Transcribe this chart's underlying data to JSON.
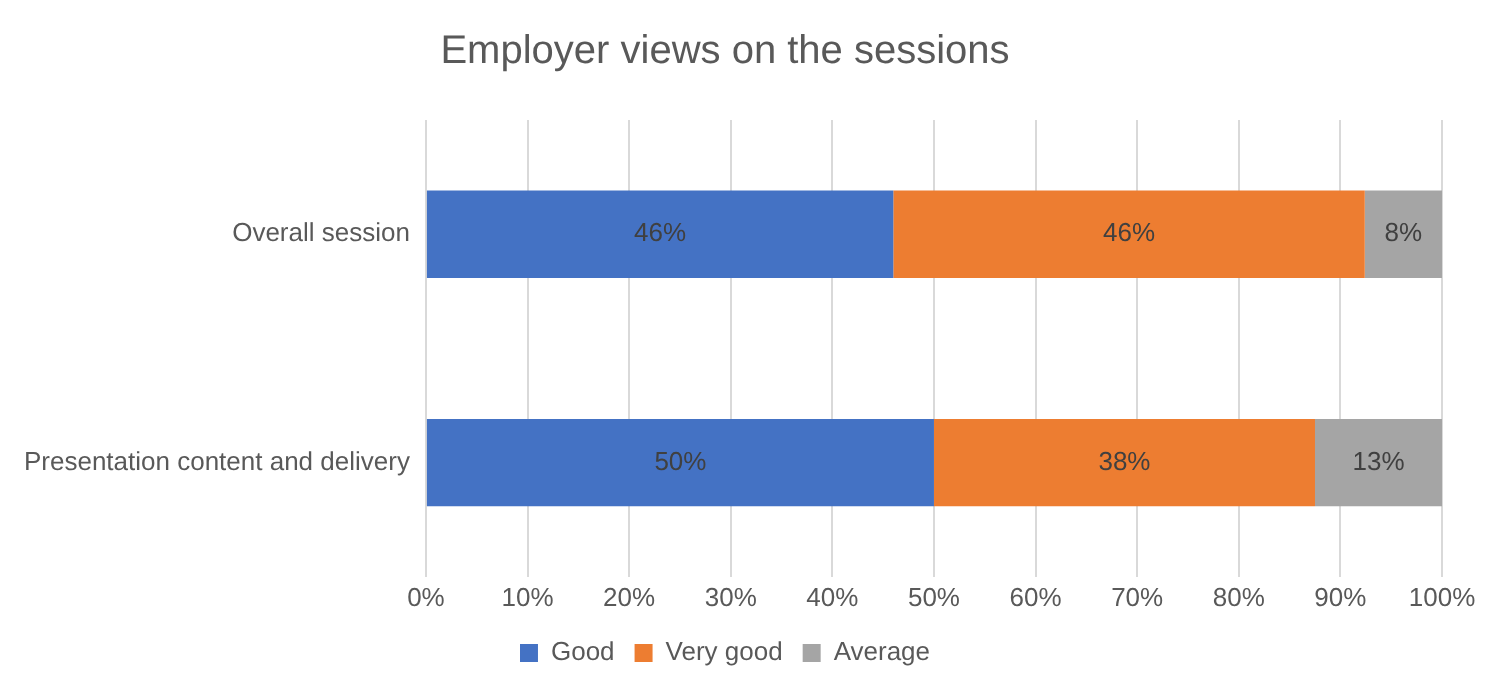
{
  "chart_data": {
    "type": "bar",
    "orientation": "horizontal",
    "stacked": true,
    "title": "Employer views on the sessions",
    "categories": [
      "Overall session",
      "Presentation content and delivery"
    ],
    "series": [
      {
        "name": "Good",
        "color": "#4472c4",
        "values": [
          46,
          50
        ],
        "value_labels": [
          "46%",
          "50%"
        ]
      },
      {
        "name": "Very good",
        "color": "#ed7d31",
        "values": [
          46.4,
          37.5
        ],
        "value_labels": [
          "46%",
          "38%"
        ]
      },
      {
        "name": "Average",
        "color": "#a5a5a5",
        "values": [
          7.6,
          12.5
        ],
        "value_labels": [
          "8%",
          "13%"
        ]
      }
    ],
    "xlim": [
      0,
      100
    ],
    "xticks": [
      {
        "value": 0,
        "label": "0%"
      },
      {
        "value": 10,
        "label": "10%"
      },
      {
        "value": 20,
        "label": "20%"
      },
      {
        "value": 30,
        "label": "30%"
      },
      {
        "value": 40,
        "label": "40%"
      },
      {
        "value": 50,
        "label": "50%"
      },
      {
        "value": 60,
        "label": "60%"
      },
      {
        "value": 70,
        "label": "70%"
      },
      {
        "value": 80,
        "label": "80%"
      },
      {
        "value": 90,
        "label": "90%"
      },
      {
        "value": 100,
        "label": "100%"
      }
    ],
    "grid": "x",
    "legend": "bottom"
  }
}
